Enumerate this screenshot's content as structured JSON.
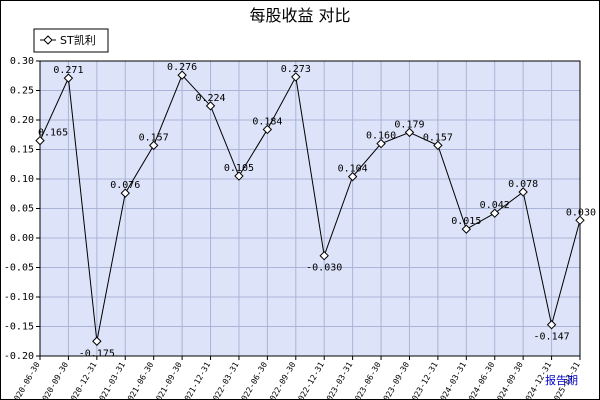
{
  "chart_data": {
    "type": "line",
    "title": "每股收益  对比",
    "legend": "ST凯利",
    "legend_position": "top-left",
    "grid": true,
    "ylim": [
      -0.2,
      0.3
    ],
    "yticks": [
      "0.30",
      "0.25",
      "0.20",
      "0.15",
      "0.10",
      "0.05",
      "0.00",
      "-0.05",
      "-0.10",
      "-0.15",
      "-0.20"
    ],
    "period_label": "报告期",
    "colors": {
      "plot_bg": "#dde3f8",
      "grid": "#aab4d8",
      "line": "#000000",
      "marker": "#ffffff"
    },
    "series": [
      {
        "name": "ST凯利",
        "x": [
          "2020-06-30",
          "2020-09-30",
          "2020-12-31",
          "2021-03-31",
          "2021-06-30",
          "2021-09-30",
          "2021-12-31",
          "2022-03-31",
          "2022-06-30",
          "2022-09-30",
          "2022-12-31",
          "2023-03-31",
          "2023-06-30",
          "2023-09-30",
          "2023-12-31",
          "2024-03-31",
          "2024-06-30",
          "2024-09-30",
          "2024-12-31",
          "2025-03-31"
        ],
        "values": [
          0.165,
          0.271,
          -0.175,
          0.076,
          0.157,
          0.276,
          0.224,
          0.105,
          0.184,
          0.273,
          -0.03,
          0.104,
          0.16,
          0.179,
          0.157,
          0.015,
          0.042,
          0.078,
          -0.147,
          0.03
        ],
        "labels": [
          "0.165",
          "0.271",
          "-0.175",
          "0.076",
          "0.157",
          "0.276",
          "0.224",
          "0.105",
          "0.184",
          "0.273",
          "-0.030",
          "0.104",
          "0.160",
          "0.179",
          "0.157",
          "0.015",
          "0.042",
          "0.078",
          "-0.147",
          "0.030"
        ]
      }
    ]
  }
}
